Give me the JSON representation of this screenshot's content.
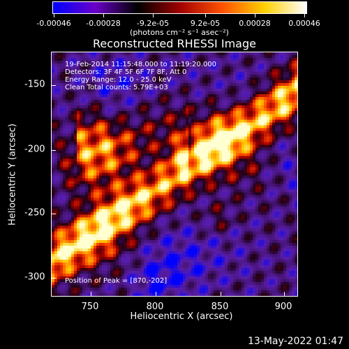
{
  "colorbar": {
    "ticks": [
      "-0.00046",
      "-0.00028",
      "-9.2e-05",
      "9.2e-05",
      "0.00028",
      "0.00046"
    ],
    "unit_label": "(photons cm⁻² s⁻¹ asec⁻²)",
    "colors": [
      "#0000ff",
      "#6a00c8",
      "#000000",
      "#a00000",
      "#ff5000",
      "#ffd000",
      "#ffffff"
    ]
  },
  "plot": {
    "title": "Reconstructed RHESSI Image",
    "annotations": [
      "19-Feb-2014 11:15:48.000 to 11:19:20.000",
      "Detectors: 3F 4F 5F 6F 7F 8F, Att 0",
      "Energy Range: 12.0 - 25.0 keV",
      "Clean     Total counts: 5.79E+03"
    ],
    "peak_label": "Position of Peak = [870,-202]",
    "xlabel": "Heliocentric X (arcsec)",
    "ylabel": "Heliocentric Y (arcsec)",
    "xticks": [
      "750",
      "800",
      "850",
      "900"
    ],
    "yticks": [
      "-150",
      "-200",
      "-250",
      "-300"
    ],
    "xlim": [
      720,
      912
    ],
    "ylim": [
      -318,
      -128
    ]
  },
  "footer": {
    "date": "13-May-2022 01:47"
  }
}
